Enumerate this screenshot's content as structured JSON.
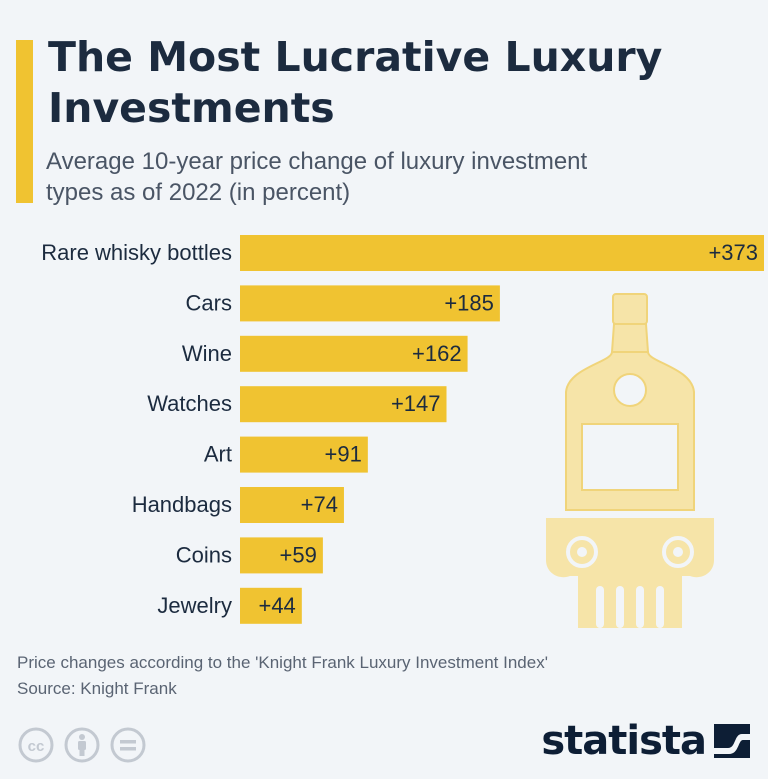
{
  "header": {
    "title": "The Most Lucrative Luxury Investments",
    "subtitle": "Average 10-year price change of luxury investment types as of 2022 (in percent)"
  },
  "chart_data": {
    "type": "bar",
    "orientation": "horizontal",
    "title": "The Most Lucrative Luxury Investments",
    "subtitle": "Average 10-year price change of luxury investment types as of 2022 (in percent)",
    "categories": [
      "Rare whisky bottles",
      "Cars",
      "Wine",
      "Watches",
      "Art",
      "Handbags",
      "Coins",
      "Jewelry"
    ],
    "values": [
      373,
      185,
      162,
      147,
      91,
      74,
      59,
      44
    ],
    "value_labels": [
      "+373",
      "+185",
      "+162",
      "+147",
      "+91",
      "+74",
      "+59",
      "+44"
    ],
    "xlim": [
      0,
      373
    ],
    "xlabel": "",
    "ylabel": "",
    "grid": false,
    "bar_color": "#f0c331"
  },
  "footer": {
    "note": "Price changes according to the 'Knight Frank Luxury Investment Index'",
    "source": "Source: Knight Frank",
    "brand": "statista"
  },
  "colors": {
    "accent": "#f0c331",
    "text_dark": "#1c2b3f",
    "illustration": "#f6e4a8",
    "background": "#f2f5f8"
  },
  "icons": [
    "cc-icon",
    "attribution-icon",
    "no-derivatives-icon",
    "statista-logo-icon",
    "whisky-bottle-illustration"
  ]
}
